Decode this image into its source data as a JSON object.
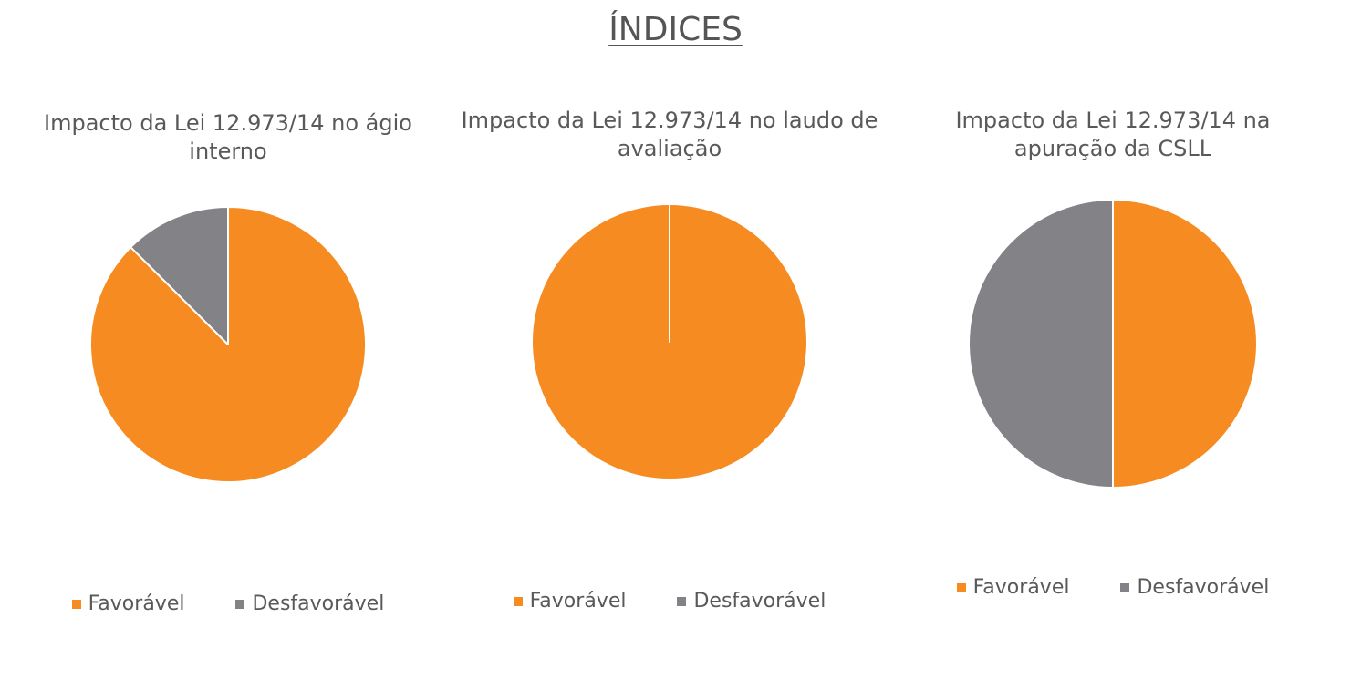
{
  "title": "ÍNDICES",
  "chart_data": [
    {
      "type": "pie",
      "title": "Impacto da Lei 12.973/14 no ágio interno",
      "categories": [
        "Favorável",
        "Desfavorável"
      ],
      "values": [
        87.5,
        12.5
      ],
      "colors": [
        "#f68b21",
        "#838286"
      ]
    },
    {
      "type": "pie",
      "title": "Impacto da Lei 12.973/14 no laudo de avaliação",
      "categories": [
        "Favorável",
        "Desfavorável"
      ],
      "values": [
        100,
        0
      ],
      "colors": [
        "#f68b21",
        "#838286"
      ]
    },
    {
      "type": "pie",
      "title": "Impacto da Lei 12.973/14 na apuração da CSLL",
      "categories": [
        "Favorável",
        "Desfavorável"
      ],
      "values": [
        50,
        50
      ],
      "colors": [
        "#f68b21",
        "#838286"
      ]
    }
  ]
}
